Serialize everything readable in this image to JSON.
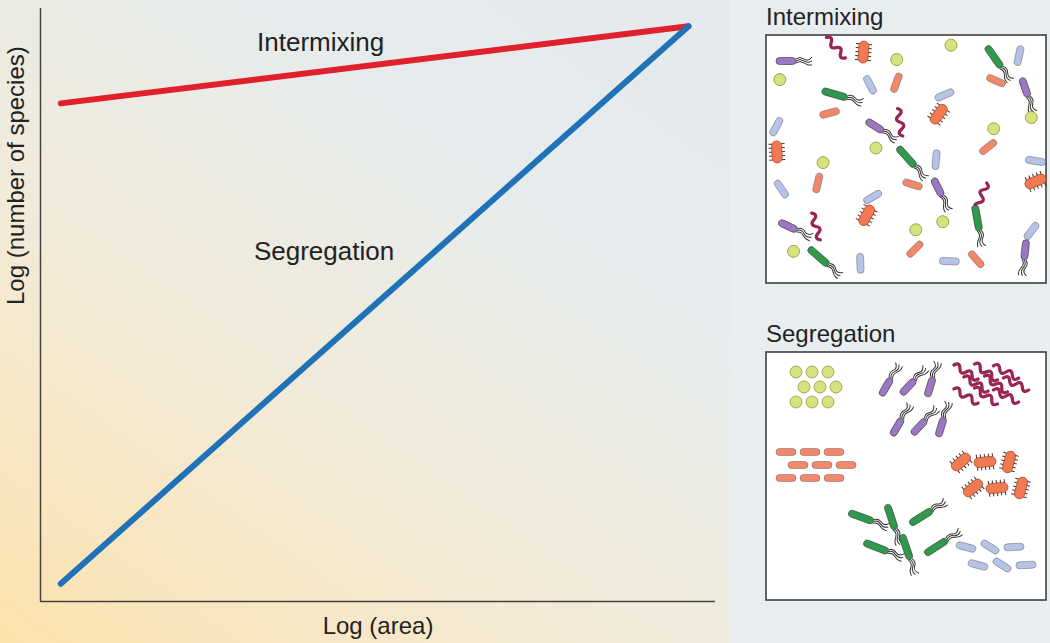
{
  "chart_data": {
    "type": "line",
    "x_label": "Log (area)",
    "y_label": "Log (number of species)",
    "log": true,
    "tick_labels": false,
    "xlim": [
      0,
      10
    ],
    "ylim": [
      0,
      10
    ],
    "xticks": [],
    "yticks": [],
    "x": [
      0.3,
      9.6
    ],
    "series": [
      {
        "name": "Intermixing",
        "color": "#e0202c",
        "values": [
          8.4,
          9.7
        ]
      },
      {
        "name": "Segregation",
        "color": "#1f72b8",
        "values": [
          0.3,
          9.7
        ]
      }
    ],
    "annotations": [
      {
        "text": "Intermixing",
        "x": 4.15,
        "y": 9.43
      },
      {
        "text": "Segregation",
        "x": 4.2,
        "y": 5.9
      }
    ],
    "panels": [
      "Intermixing",
      "Segregation"
    ]
  }
}
